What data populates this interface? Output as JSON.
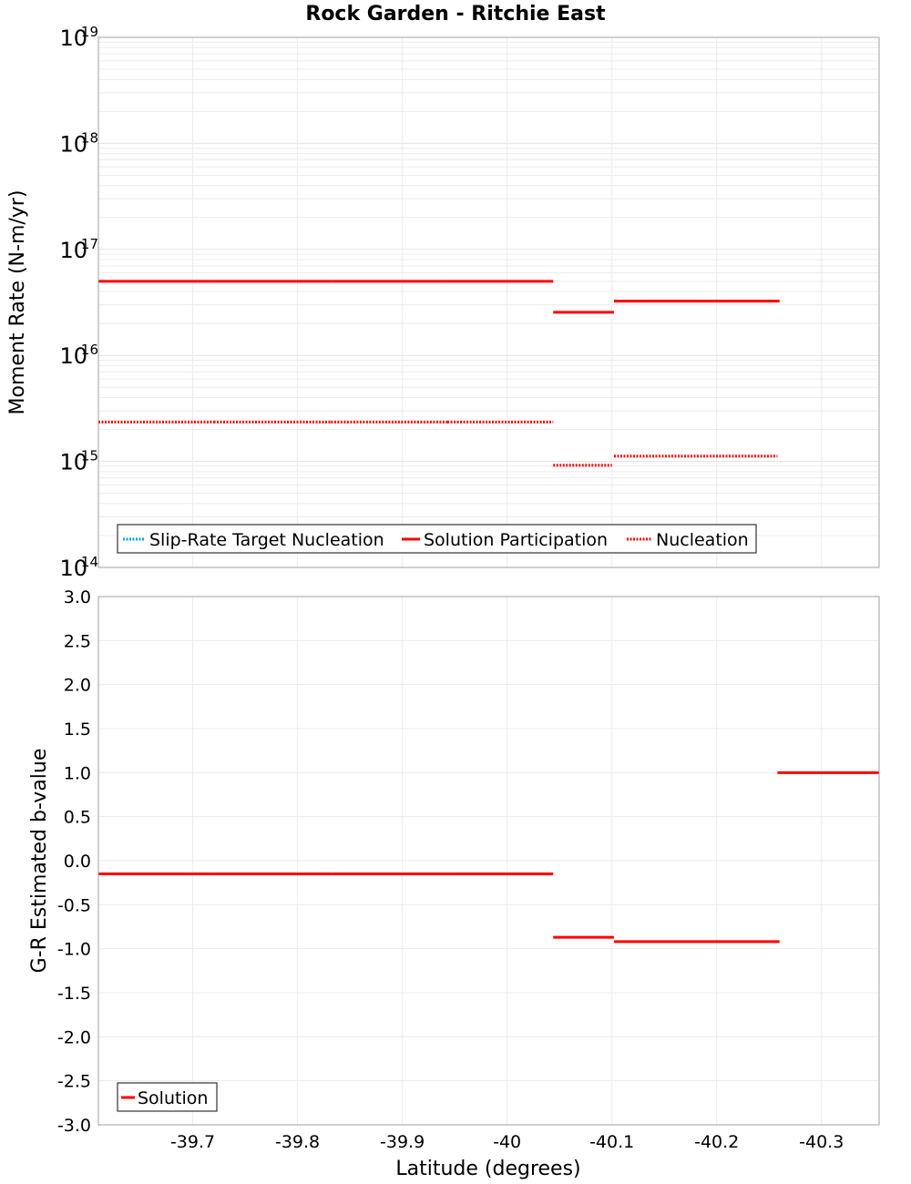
{
  "chart_data": [
    {
      "type": "line",
      "title": "Rock Garden - Ritchie East",
      "ylabel": "Moment Rate (N-m/yr)",
      "yscale": "log",
      "ylim": [
        100000000000000.0,
        1e+19
      ],
      "y_ticks": [
        {
          "base": "10",
          "exp": "19"
        },
        {
          "base": "10",
          "exp": "18"
        },
        {
          "base": "10",
          "exp": "17"
        },
        {
          "base": "10",
          "exp": "16"
        },
        {
          "base": "10",
          "exp": "15"
        },
        {
          "base": "10",
          "exp": "14"
        }
      ],
      "xlim": [
        -39.61,
        -40.355
      ],
      "grid": true,
      "legend_position": "bottom-left",
      "legend": [
        "Slip-Rate Target Nucleation",
        "Solution Participation",
        "Nucleation"
      ],
      "series": [
        {
          "name": "Solution Participation",
          "color": "#ff0000",
          "style": "solid",
          "segments": [
            {
              "x": [
                -39.61,
                -39.72
              ],
              "y": 5e+16
            },
            {
              "x": [
                -39.72,
                -39.832
              ],
              "y": 5e+16
            },
            {
              "x": [
                -39.832,
                -39.943
              ],
              "y": 5e+16
            },
            {
              "x": [
                -39.943,
                -40.044
              ],
              "y": 5e+16
            },
            {
              "x": [
                -40.044,
                -40.102
              ],
              "y": 2.55e+16
            },
            {
              "x": [
                -40.102,
                -40.26
              ],
              "y": 3.25e+16
            }
          ]
        },
        {
          "name": "Nucleation",
          "color": "#ff0000",
          "style": "dotted",
          "segments": [
            {
              "x": [
                -39.61,
                -39.72
              ],
              "y": 2350000000000000.0
            },
            {
              "x": [
                -39.72,
                -39.832
              ],
              "y": 2350000000000000.0
            },
            {
              "x": [
                -39.832,
                -39.943
              ],
              "y": 2350000000000000.0
            },
            {
              "x": [
                -39.943,
                -40.044
              ],
              "y": 2350000000000000.0
            },
            {
              "x": [
                -40.044,
                -40.1
              ],
              "y": 920000000000000.0
            },
            {
              "x": [
                -40.102,
                -40.258
              ],
              "y": 1120000000000000.0
            }
          ]
        },
        {
          "name": "Slip-Rate Target Nucleation",
          "color": "#00aacc",
          "style": "dotted",
          "segments": []
        }
      ]
    },
    {
      "type": "line",
      "ylabel": "G-R Estimated b-value",
      "xlabel": "Latitude (degrees)",
      "ylim": [
        -3.0,
        3.0
      ],
      "y_ticks": [
        "3.0",
        "2.5",
        "2.0",
        "1.5",
        "1.0",
        "0.5",
        "0.0",
        "-0.5",
        "-1.0",
        "-1.5",
        "-2.0",
        "-2.5",
        "-3.0"
      ],
      "xlim": [
        -39.61,
        -40.355
      ],
      "x_ticks": [
        "-39.7",
        "-39.8",
        "-39.9",
        "-40",
        "-40.1",
        "-40.2",
        "-40.3"
      ],
      "grid": true,
      "legend_position": "bottom-left",
      "legend": [
        "Solution"
      ],
      "series": [
        {
          "name": "Solution",
          "color": "#ff0000",
          "style": "solid",
          "segments": [
            {
              "x": [
                -39.61,
                -39.72
              ],
              "y": -0.15
            },
            {
              "x": [
                -39.72,
                -39.832
              ],
              "y": -0.15
            },
            {
              "x": [
                -39.832,
                -39.943
              ],
              "y": -0.15
            },
            {
              "x": [
                -39.943,
                -40.044
              ],
              "y": -0.15
            },
            {
              "x": [
                -40.044,
                -40.102
              ],
              "y": -0.87
            },
            {
              "x": [
                -40.102,
                -40.26
              ],
              "y": -0.92
            },
            {
              "x": [
                -40.258,
                -40.355
              ],
              "y": 1.0
            }
          ]
        }
      ]
    }
  ]
}
